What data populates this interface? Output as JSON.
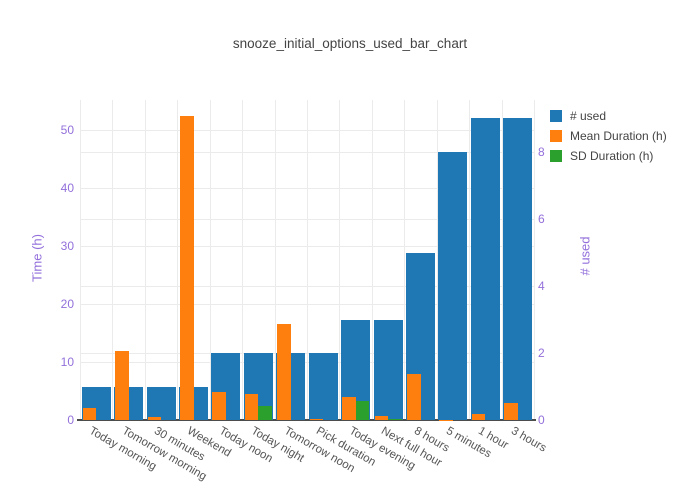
{
  "title": "snooze_initial_options_used_bar_chart",
  "colors": {
    "used": "#1f77b4",
    "mean_duration": "#ff7f0e",
    "sd_duration": "#2ca02c",
    "axis_label_purple": "#9370DB",
    "x_tick_gray": "#555555",
    "title_gray": "#444444",
    "gridline": "#ebebeb",
    "zeroline": "#4c4c4c"
  },
  "chart_data": {
    "type": "bar",
    "title": "snooze_initial_options_used_bar_chart",
    "categories": [
      "Today morning",
      "Tomorrow morning",
      "30 minutes",
      "Weekend",
      "Today noon",
      "Today night",
      "Tomorrow noon",
      "Pick duration",
      "Today evening",
      "Next full hour",
      "8 hours",
      "5 minutes",
      "1 hour",
      "3 hours"
    ],
    "series": [
      {
        "name": "# used",
        "axis": "right",
        "color": "#1f77b4",
        "values": [
          1,
          1,
          1,
          1,
          2,
          2,
          2,
          2,
          3,
          3,
          5,
          8,
          9,
          9
        ]
      },
      {
        "name": "Mean Duration (h)",
        "axis": "left",
        "color": "#ff7f0e",
        "values": [
          2.0,
          11.9,
          0.5,
          52.5,
          4.9,
          4.5,
          16.5,
          0.1,
          3.9,
          0.65,
          8.0,
          0.08,
          1.0,
          3.0
        ]
      },
      {
        "name": "SD Duration (h)",
        "axis": "left",
        "color": "#2ca02c",
        "values": [
          0,
          0,
          0,
          0,
          0,
          2.5,
          0,
          0,
          3.2,
          0.25,
          0,
          0,
          0,
          0
        ]
      }
    ],
    "left_axis": {
      "label": "Time (h)",
      "ticks": [
        0,
        10,
        20,
        30,
        40,
        50
      ],
      "range": [
        0,
        55.2
      ]
    },
    "right_axis": {
      "label": "# used",
      "ticks": [
        0,
        2,
        4,
        6,
        8
      ],
      "range": [
        0,
        9.55
      ]
    },
    "legend": [
      "# used",
      "Mean Duration (h)",
      "SD Duration (h)"
    ],
    "legend_position": "top-right",
    "grid": true,
    "x_tick_angle_deg": 30
  }
}
